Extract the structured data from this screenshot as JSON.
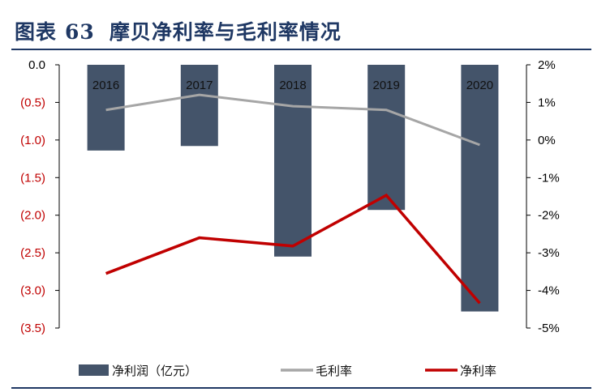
{
  "page": {
    "title_prefix": "图表",
    "title_number": "63",
    "title_text": "摩贝净利率与毛利率情况"
  },
  "colors": {
    "title": "#1f3864",
    "bar": "#44546a",
    "gross_margin": "#a6a6a6",
    "net_margin": "#c00000",
    "negative_tick": "#c00000"
  },
  "chart_data": {
    "type": "bar",
    "categories": [
      "2016",
      "2017",
      "2018",
      "2019",
      "2020"
    ],
    "left_axis": {
      "ylim": [
        -3.5,
        0
      ],
      "ticks": [
        0,
        -0.5,
        -1.0,
        -1.5,
        -2.0,
        -2.5,
        -3.0,
        -3.5
      ],
      "tick_labels": [
        "0.0",
        "(0.5)",
        "(1.0)",
        "(1.5)",
        "(2.0)",
        "(2.5)",
        "(3.0)",
        "(3.5)"
      ]
    },
    "right_axis": {
      "ylim": [
        -5,
        2
      ],
      "ticks": [
        2,
        1,
        0,
        -1,
        -2,
        -3,
        -4,
        -5
      ],
      "tick_labels": [
        "2%",
        "1%",
        "0%",
        "-1%",
        "-2%",
        "-3%",
        "-4%",
        "-5%"
      ]
    },
    "series": [
      {
        "name": "净利润（亿元）",
        "type": "bar",
        "axis": "left",
        "values": [
          -1.14,
          -1.08,
          -2.55,
          -1.93,
          -3.28
        ]
      },
      {
        "name": "毛利率",
        "type": "line",
        "axis": "right",
        "values": [
          0.8,
          1.2,
          0.9,
          0.8,
          -0.13
        ]
      },
      {
        "name": "净利率",
        "type": "line",
        "axis": "right",
        "values": [
          -3.55,
          -2.6,
          -2.82,
          -1.47,
          -4.34
        ]
      }
    ],
    "legend": "bottom",
    "grid": false
  }
}
